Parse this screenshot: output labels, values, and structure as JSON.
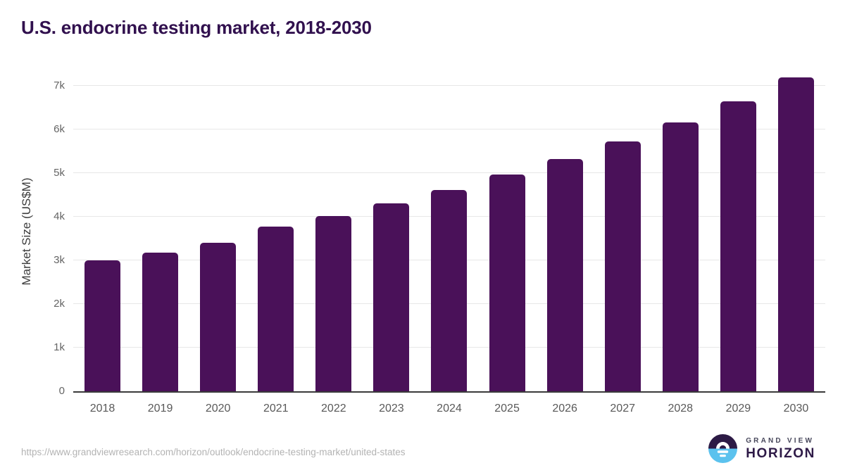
{
  "page": {
    "title": "U.S. endocrine testing market, 2018-2030"
  },
  "chart_data": {
    "type": "bar",
    "title": "U.S. endocrine testing market, 2018-2030",
    "categories": [
      "2018",
      "2019",
      "2020",
      "2021",
      "2022",
      "2023",
      "2024",
      "2025",
      "2026",
      "2027",
      "2028",
      "2029",
      "2030"
    ],
    "values": [
      3000,
      3170,
      3410,
      3770,
      4020,
      4310,
      4610,
      4960,
      5330,
      5730,
      6160,
      6650,
      7200
    ],
    "xlabel": "",
    "ylabel": "Market Size (US$M)",
    "yticks": [
      {
        "label": "0",
        "value": 0
      },
      {
        "label": "1k",
        "value": 1000
      },
      {
        "label": "2k",
        "value": 2000
      },
      {
        "label": "3k",
        "value": 3000
      },
      {
        "label": "4k",
        "value": 4000
      },
      {
        "label": "5k",
        "value": 5000
      },
      {
        "label": "6k",
        "value": 6000
      },
      {
        "label": "7k",
        "value": 7000
      }
    ],
    "ylim": [
      0,
      7400
    ],
    "grid": true,
    "legend": false,
    "bar_color": "#4a1159"
  },
  "colors": {
    "title": "#31104e",
    "bar": "#4a1159",
    "logo_dark": "#2c1a45",
    "logo_blue": "#5bc2ee",
    "logo_top_text": "#46465a",
    "logo_bottom_text": "#2e1a47"
  },
  "footer": {
    "source_url": "https://www.grandviewresearch.com/horizon/outlook/endocrine-testing-market/united-states",
    "logo": {
      "line1": "GRAND VIEW",
      "line2": "HORIZON"
    }
  }
}
